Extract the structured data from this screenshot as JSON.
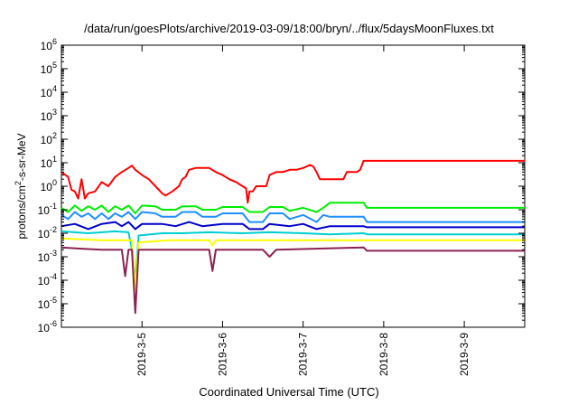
{
  "chart_data": {
    "type": "line",
    "title": "/data/run/goesPlots/archive/2019-03-09/18:00/bryn/../flux/5daysMoonFluxes.txt",
    "xlabel": "Coordinated Universal Time (UTC)",
    "ylabel_parts": {
      "base": "protons/cm",
      "sup": "2",
      "rest": "-s-sr-MeV"
    },
    "xscale": "date",
    "yscale": "log",
    "xlim": [
      "2019-03-04 00:00",
      "2019-03-09 18:00"
    ],
    "ylim": [
      1e-06,
      1000000.0
    ],
    "xticks": [
      {
        "t": "2019-03-05 00:00",
        "label": "2019-3-5"
      },
      {
        "t": "2019-03-06 00:00",
        "label": "2019-3-6"
      },
      {
        "t": "2019-03-07 00:00",
        "label": "2019-3-7"
      },
      {
        "t": "2019-03-08 00:00",
        "label": "2019-3-8"
      },
      {
        "t": "2019-03-09 00:00",
        "label": "2019-3-9"
      }
    ],
    "yticks": [
      {
        "value": 1e-06,
        "mant": "10",
        "exp": "-6"
      },
      {
        "value": 1e-05,
        "mant": "10",
        "exp": "-5"
      },
      {
        "value": 0.0001,
        "mant": "10",
        "exp": "-4"
      },
      {
        "value": 0.001,
        "mant": "10",
        "exp": "-3"
      },
      {
        "value": 0.01,
        "mant": "10",
        "exp": "-2"
      },
      {
        "value": 0.1,
        "mant": "10",
        "exp": "-1"
      },
      {
        "value": 1.0,
        "mant": "10",
        "exp": "0"
      },
      {
        "value": 10.0,
        "mant": "10",
        "exp": "1"
      },
      {
        "value": 100.0,
        "mant": "10",
        "exp": "2"
      },
      {
        "value": 1000.0,
        "mant": "10",
        "exp": "3"
      },
      {
        "value": 10000.0,
        "mant": "10",
        "exp": "4"
      },
      {
        "value": 100000.0,
        "mant": "10",
        "exp": "5"
      },
      {
        "value": 1000000.0,
        "mant": "10",
        "exp": "6"
      }
    ],
    "grid": false,
    "legend": "none",
    "series": [
      {
        "color": "#ff0000",
        "points": [
          [
            "2019-03-04 00:00",
            4
          ],
          [
            "2019-03-04 02:00",
            2.5
          ],
          [
            "2019-03-04 03:00",
            0.7
          ],
          [
            "2019-03-04 04:00",
            0.6
          ],
          [
            "2019-03-04 05:00",
            0.3
          ],
          [
            "2019-03-04 06:00",
            2
          ],
          [
            "2019-03-04 07:00",
            0.3
          ],
          [
            "2019-03-04 08:00",
            0.5
          ],
          [
            "2019-03-04 10:00",
            0.6
          ],
          [
            "2019-03-04 12:00",
            1.5
          ],
          [
            "2019-03-04 14:00",
            1
          ],
          [
            "2019-03-04 16:00",
            2.5
          ],
          [
            "2019-03-04 18:00",
            4
          ],
          [
            "2019-03-04 20:00",
            6
          ],
          [
            "2019-03-04 21:00",
            7.5
          ],
          [
            "2019-03-04 22:00",
            5
          ],
          [
            "2019-03-05 00:00",
            3
          ],
          [
            "2019-03-05 02:00",
            2
          ],
          [
            "2019-03-05 04:00",
            1
          ],
          [
            "2019-03-05 06:00",
            0.5
          ],
          [
            "2019-03-05 07:00",
            0.4
          ],
          [
            "2019-03-05 09:00",
            0.6
          ],
          [
            "2019-03-05 11:00",
            1
          ],
          [
            "2019-03-05 12:00",
            2
          ],
          [
            "2019-03-05 13:00",
            2.5
          ],
          [
            "2019-03-05 14:00",
            5
          ],
          [
            "2019-03-05 16:00",
            6
          ],
          [
            "2019-03-05 18:00",
            6
          ],
          [
            "2019-03-05 20:00",
            6
          ],
          [
            "2019-03-05 22:00",
            4
          ],
          [
            "2019-03-06 00:00",
            3
          ],
          [
            "2019-03-06 02:00",
            2
          ],
          [
            "2019-03-06 04:00",
            1.5
          ],
          [
            "2019-03-06 06:00",
            1
          ],
          [
            "2019-03-06 07:00",
            0.8
          ],
          [
            "2019-03-06 07:30",
            0.2
          ],
          [
            "2019-03-06 08:00",
            0.6
          ],
          [
            "2019-03-06 09:00",
            0.6
          ],
          [
            "2019-03-06 10:00",
            1
          ],
          [
            "2019-03-06 12:00",
            1
          ],
          [
            "2019-03-06 13:00",
            1
          ],
          [
            "2019-03-06 14:00",
            3
          ],
          [
            "2019-03-06 16:00",
            4
          ],
          [
            "2019-03-06 18:00",
            4
          ],
          [
            "2019-03-06 20:00",
            5
          ],
          [
            "2019-03-06 22:00",
            5
          ],
          [
            "2019-03-07 00:00",
            6
          ],
          [
            "2019-03-07 02:00",
            8
          ],
          [
            "2019-03-07 03:00",
            7
          ],
          [
            "2019-03-07 04:00",
            4
          ],
          [
            "2019-03-07 05:00",
            2
          ],
          [
            "2019-03-07 12:00",
            2
          ],
          [
            "2019-03-07 13:00",
            4
          ],
          [
            "2019-03-07 16:00",
            4
          ],
          [
            "2019-03-07 17:00",
            5
          ],
          [
            "2019-03-07 18:00",
            12
          ],
          [
            "2019-03-09 18:00",
            12
          ]
        ]
      },
      {
        "color": "#00ee00",
        "points": [
          [
            "2019-03-04 00:00",
            0.12
          ],
          [
            "2019-03-04 02:00",
            0.08
          ],
          [
            "2019-03-04 04:00",
            0.15
          ],
          [
            "2019-03-04 06:00",
            0.09
          ],
          [
            "2019-03-04 08:00",
            0.14
          ],
          [
            "2019-03-04 10:00",
            0.1
          ],
          [
            "2019-03-04 12:00",
            0.15
          ],
          [
            "2019-03-04 14:00",
            0.08
          ],
          [
            "2019-03-04 16:00",
            0.14
          ],
          [
            "2019-03-04 18:00",
            0.1
          ],
          [
            "2019-03-04 20:00",
            0.15
          ],
          [
            "2019-03-04 22:00",
            0.07
          ],
          [
            "2019-03-05 00:00",
            0.15
          ],
          [
            "2019-03-05 04:00",
            0.14
          ],
          [
            "2019-03-05 06:00",
            0.1
          ],
          [
            "2019-03-05 10:00",
            0.1
          ],
          [
            "2019-03-05 12:00",
            0.14
          ],
          [
            "2019-03-05 16:00",
            0.14
          ],
          [
            "2019-03-05 18:00",
            0.1
          ],
          [
            "2019-03-05 22:00",
            0.1
          ],
          [
            "2019-03-06 00:00",
            0.13
          ],
          [
            "2019-03-06 06:00",
            0.13
          ],
          [
            "2019-03-06 08:00",
            0.08
          ],
          [
            "2019-03-06 12:00",
            0.08
          ],
          [
            "2019-03-06 14:00",
            0.13
          ],
          [
            "2019-03-06 18:00",
            0.13
          ],
          [
            "2019-03-06 20:00",
            0.09
          ],
          [
            "2019-03-07 00:00",
            0.12
          ],
          [
            "2019-03-07 04:00",
            0.08
          ],
          [
            "2019-03-07 06:00",
            0.12
          ],
          [
            "2019-03-07 08:00",
            0.2
          ],
          [
            "2019-03-07 18:00",
            0.2
          ],
          [
            "2019-03-07 19:00",
            0.12
          ],
          [
            "2019-03-09 18:00",
            0.12
          ]
        ]
      },
      {
        "color": "#1e90ff",
        "points": [
          [
            "2019-03-04 00:00",
            0.06
          ],
          [
            "2019-03-04 02:00",
            0.04
          ],
          [
            "2019-03-04 04:00",
            0.08
          ],
          [
            "2019-03-04 06:00",
            0.05
          ],
          [
            "2019-03-04 08:00",
            0.07
          ],
          [
            "2019-03-04 10:00",
            0.04
          ],
          [
            "2019-03-04 12:00",
            0.07
          ],
          [
            "2019-03-04 14:00",
            0.04
          ],
          [
            "2019-03-04 16:00",
            0.07
          ],
          [
            "2019-03-04 18:00",
            0.05
          ],
          [
            "2019-03-04 20:00",
            0.08
          ],
          [
            "2019-03-04 22:00",
            0.04
          ],
          [
            "2019-03-05 00:00",
            0.08
          ],
          [
            "2019-03-05 04:00",
            0.07
          ],
          [
            "2019-03-05 06:00",
            0.05
          ],
          [
            "2019-03-05 10:00",
            0.05
          ],
          [
            "2019-03-05 12:00",
            0.08
          ],
          [
            "2019-03-05 16:00",
            0.08
          ],
          [
            "2019-03-05 18:00",
            0.05
          ],
          [
            "2019-03-05 22:00",
            0.05
          ],
          [
            "2019-03-06 00:00",
            0.07
          ],
          [
            "2019-03-06 06:00",
            0.07
          ],
          [
            "2019-03-06 08:00",
            0.03
          ],
          [
            "2019-03-06 12:00",
            0.03
          ],
          [
            "2019-03-06 14:00",
            0.07
          ],
          [
            "2019-03-06 18:00",
            0.07
          ],
          [
            "2019-03-06 20:00",
            0.04
          ],
          [
            "2019-03-07 00:00",
            0.06
          ],
          [
            "2019-03-07 04:00",
            0.03
          ],
          [
            "2019-03-07 06:00",
            0.06
          ],
          [
            "2019-03-07 08:00",
            0.05
          ],
          [
            "2019-03-07 18:00",
            0.05
          ],
          [
            "2019-03-07 19:00",
            0.03
          ],
          [
            "2019-03-09 18:00",
            0.03
          ]
        ]
      },
      {
        "color": "#0000cd",
        "points": [
          [
            "2019-03-04 00:00",
            0.02
          ],
          [
            "2019-03-04 04:00",
            0.025
          ],
          [
            "2019-03-04 08:00",
            0.015
          ],
          [
            "2019-03-04 12:00",
            0.025
          ],
          [
            "2019-03-04 16:00",
            0.03
          ],
          [
            "2019-03-04 18:00",
            0.02
          ],
          [
            "2019-03-04 20:00",
            0.03
          ],
          [
            "2019-03-04 22:00",
            0.015
          ],
          [
            "2019-03-05 00:00",
            0.025
          ],
          [
            "2019-03-05 06:00",
            0.025
          ],
          [
            "2019-03-05 10:00",
            0.02
          ],
          [
            "2019-03-05 14:00",
            0.03
          ],
          [
            "2019-03-05 18:00",
            0.02
          ],
          [
            "2019-03-06 00:00",
            0.025
          ],
          [
            "2019-03-06 06:00",
            0.025
          ],
          [
            "2019-03-06 08:00",
            0.015
          ],
          [
            "2019-03-06 12:00",
            0.015
          ],
          [
            "2019-03-06 14:00",
            0.025
          ],
          [
            "2019-03-06 20:00",
            0.02
          ],
          [
            "2019-03-07 00:00",
            0.025
          ],
          [
            "2019-03-07 04:00",
            0.015
          ],
          [
            "2019-03-07 08:00",
            0.02
          ],
          [
            "2019-03-07 18:00",
            0.02
          ],
          [
            "2019-03-07 19:00",
            0.018
          ],
          [
            "2019-03-09 18:00",
            0.018
          ]
        ]
      },
      {
        "color": "#00ced1",
        "points": [
          [
            "2019-03-04 00:00",
            0.012
          ],
          [
            "2019-03-04 08:00",
            0.01
          ],
          [
            "2019-03-04 16:00",
            0.012
          ],
          [
            "2019-03-04 20:00",
            0.011
          ],
          [
            "2019-03-04 21:00",
            0.002
          ],
          [
            "2019-03-04 22:00",
            0.0001
          ],
          [
            "2019-03-04 23:00",
            0.008
          ],
          [
            "2019-03-05 06:00",
            0.01
          ],
          [
            "2019-03-05 12:00",
            0.01
          ],
          [
            "2019-03-05 20:00",
            0.011
          ],
          [
            "2019-03-06 06:00",
            0.01
          ],
          [
            "2019-03-06 14:00",
            0.011
          ],
          [
            "2019-03-07 00:00",
            0.01
          ],
          [
            "2019-03-07 08:00",
            0.009
          ],
          [
            "2019-03-07 18:00",
            0.01
          ],
          [
            "2019-03-07 19:00",
            0.009
          ],
          [
            "2019-03-09 18:00",
            0.009
          ]
        ]
      },
      {
        "color": "#ffff00",
        "points": [
          [
            "2019-03-04 00:00",
            0.006
          ],
          [
            "2019-03-04 12:00",
            0.005
          ],
          [
            "2019-03-04 21:00",
            0.005
          ],
          [
            "2019-03-04 22:00",
            4e-05
          ],
          [
            "2019-03-04 23:00",
            0.004
          ],
          [
            "2019-03-05 08:00",
            0.005
          ],
          [
            "2019-03-05 20:00",
            0.005
          ],
          [
            "2019-03-05 21:00",
            0.003
          ],
          [
            "2019-03-05 22:00",
            0.005
          ],
          [
            "2019-03-06 20:00",
            0.005
          ],
          [
            "2019-03-07 18:00",
            0.005
          ],
          [
            "2019-03-09 18:00",
            0.005
          ]
        ]
      },
      {
        "color": "#8b2252",
        "points": [
          [
            "2019-03-04 00:00",
            0.0025
          ],
          [
            "2019-03-04 06:00",
            0.0022
          ],
          [
            "2019-03-04 12:00",
            0.002
          ],
          [
            "2019-03-04 18:00",
            0.002
          ],
          [
            "2019-03-04 19:00",
            0.00015
          ],
          [
            "2019-03-04 20:00",
            0.002
          ],
          [
            "2019-03-04 21:00",
            0.002
          ],
          [
            "2019-03-04 22:00",
            4e-06
          ],
          [
            "2019-03-04 23:00",
            0.002
          ],
          [
            "2019-03-05 08:00",
            0.002
          ],
          [
            "2019-03-05 20:00",
            0.002
          ],
          [
            "2019-03-05 21:00",
            0.00025
          ],
          [
            "2019-03-05 22:00",
            0.002
          ],
          [
            "2019-03-06 12:00",
            0.002
          ],
          [
            "2019-03-06 14:00",
            0.001
          ],
          [
            "2019-03-06 16:00",
            0.002
          ],
          [
            "2019-03-07 18:00",
            0.0025
          ],
          [
            "2019-03-07 19:00",
            0.0018
          ],
          [
            "2019-03-09 18:00",
            0.0018
          ]
        ]
      }
    ]
  }
}
